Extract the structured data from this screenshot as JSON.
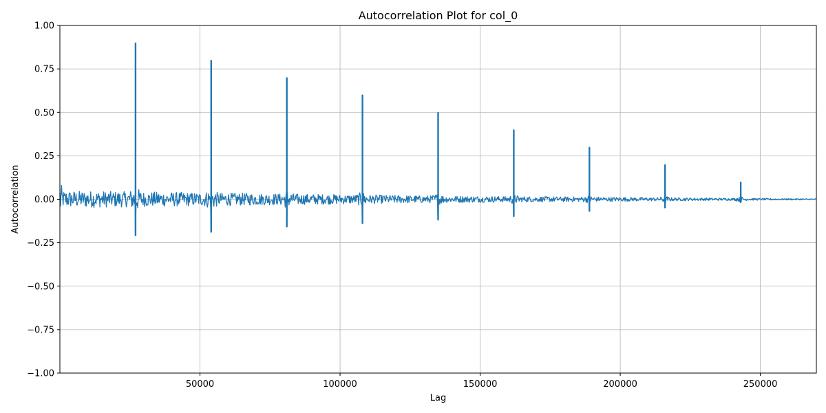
{
  "chart_data": {
    "type": "line",
    "title": "Autocorrelation Plot for col_0",
    "xlabel": "Lag",
    "ylabel": "Autocorrelation",
    "xlim": [
      0,
      270000
    ],
    "ylim": [
      -1.0,
      1.0
    ],
    "grid": true,
    "x_ticks": [
      50000,
      100000,
      150000,
      200000,
      250000
    ],
    "x_tick_labels": [
      "50000",
      "100000",
      "150000",
      "200000",
      "250000"
    ],
    "y_ticks": [
      -1.0,
      -0.75,
      -0.5,
      -0.25,
      0.0,
      0.25,
      0.5,
      0.75,
      1.0
    ],
    "y_tick_labels": [
      "−1.00",
      "−0.75",
      "−0.50",
      "−0.25",
      "0.00",
      "0.25",
      "0.50",
      "0.75",
      "1.00"
    ],
    "series": [
      {
        "color": "#1f77b4",
        "noise_band": [
          {
            "x": 0,
            "amplitude": 0.05
          },
          {
            "x": 135000,
            "amplitude": 0.02
          },
          {
            "x": 270000,
            "amplitude": 0.003
          }
        ],
        "spikes": [
          {
            "x": 27000,
            "peak": 0.9,
            "trough": -0.21
          },
          {
            "x": 54000,
            "peak": 0.8,
            "trough": -0.19
          },
          {
            "x": 81000,
            "peak": 0.7,
            "trough": -0.16
          },
          {
            "x": 108000,
            "peak": 0.6,
            "trough": -0.14
          },
          {
            "x": 135000,
            "peak": 0.5,
            "trough": -0.12
          },
          {
            "x": 162000,
            "peak": 0.4,
            "trough": -0.1
          },
          {
            "x": 189000,
            "peak": 0.3,
            "trough": -0.07
          },
          {
            "x": 216000,
            "peak": 0.2,
            "trough": -0.05
          },
          {
            "x": 243000,
            "peak": 0.1,
            "trough": -0.02
          }
        ]
      }
    ]
  }
}
